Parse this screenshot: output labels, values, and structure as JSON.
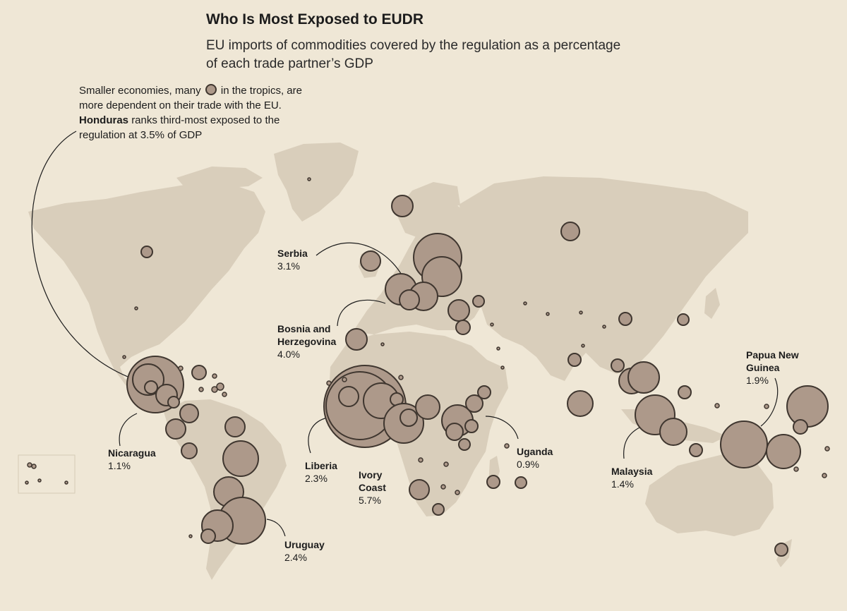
{
  "title": "Who Is Most Exposed to EUDR",
  "subtitle": "EU imports of commodities covered by the regulation as a percentage of each trade partner’s GDP",
  "intro": {
    "part1": "Smaller economies, many",
    "part2": "in the tropics, are more dependent on their trade with the EU.",
    "highlight": "Honduras",
    "part3": "ranks third-most exposed to the regulation at 3.5% of GDP"
  },
  "legend_icon": "circle-symbol-icon",
  "colors": {
    "background": "#efe7d6",
    "land": "#d9cebb",
    "bubble_fill": "#ad998a",
    "bubble_stroke": "#3f362f",
    "bubble_stroke_light": "#f3ede2"
  },
  "callouts": {
    "serbia": {
      "name": "Serbia",
      "value": "3.1%"
    },
    "bosnia": {
      "name": "Bosnia and Herzegovina",
      "value": "4.0%"
    },
    "nicaragua": {
      "name": "Nicaragua",
      "value": "1.1%"
    },
    "liberia": {
      "name": "Liberia",
      "value": "2.3%"
    },
    "ivory_coast": {
      "name": "Ivory Coast",
      "value": "5.7%"
    },
    "uganda": {
      "name": "Uganda",
      "value": "0.9%"
    },
    "uruguay": {
      "name": "Uruguay",
      "value": "2.4%"
    },
    "malaysia": {
      "name": "Malaysia",
      "value": "1.4%"
    },
    "png": {
      "name": "Papua New Guinea",
      "value": "1.9%"
    }
  }
}
